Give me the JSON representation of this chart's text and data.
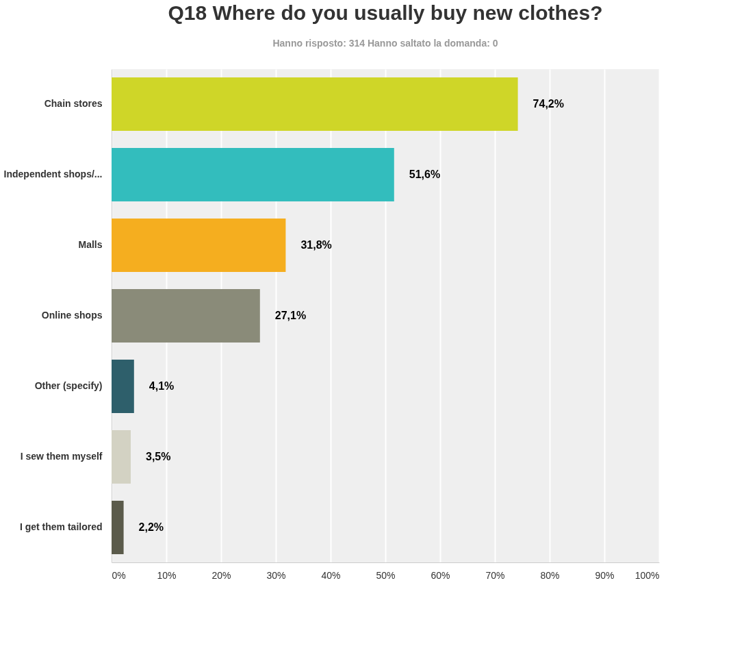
{
  "chart_data": {
    "type": "bar",
    "orientation": "horizontal",
    "title": "Q18 Where do you usually buy new clothes?",
    "subtitle": "Hanno risposto: 314    Hanno saltato la domanda: 0",
    "categories": [
      "Chain stores",
      "Independent shops/...",
      "Malls",
      "Online shops",
      "Other (specify)",
      "I sew them myself",
      "I get them tailored"
    ],
    "values": [
      74.2,
      51.6,
      31.8,
      27.1,
      4.1,
      3.5,
      2.2
    ],
    "colors": [
      "#cfd628",
      "#33bdbd",
      "#f5ae1f",
      "#8a8b79",
      "#2e5f6b",
      "#d3d2c3",
      "#5b5b4b"
    ],
    "value_labels": [
      "74,2%",
      "51,6%",
      "31,8%",
      "27,1%",
      "4,1%",
      "3,5%",
      "2,2%"
    ],
    "xlim": [
      0,
      100
    ],
    "xticks": [
      {
        "value": 0,
        "label": "0%"
      },
      {
        "value": 10,
        "label": "10%"
      },
      {
        "value": 20,
        "label": "20%"
      },
      {
        "value": 30,
        "label": "30%"
      },
      {
        "value": 40,
        "label": "40%"
      },
      {
        "value": 50,
        "label": "50%"
      },
      {
        "value": 60,
        "label": "60%"
      },
      {
        "value": 70,
        "label": "70%"
      },
      {
        "value": 80,
        "label": "80%"
      },
      {
        "value": 90,
        "label": "90%"
      },
      {
        "value": 100,
        "label": "100%"
      }
    ],
    "grid": "x"
  }
}
